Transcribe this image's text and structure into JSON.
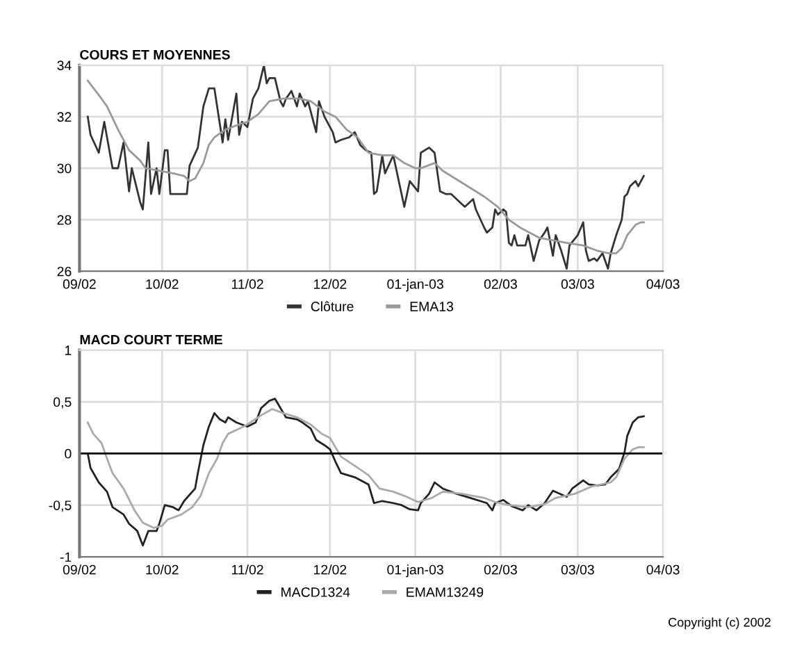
{
  "chart_data": [
    {
      "type": "line",
      "title": "COURS ET MOYENNES",
      "xlim": [
        "2002-09-01",
        "2003-04-01"
      ],
      "ylim": [
        26,
        34
      ],
      "yticks": [
        26,
        28,
        30,
        32,
        34
      ],
      "xticks": [
        {
          "value": "2002-09-01",
          "label": "09/02"
        },
        {
          "value": "2002-10-01",
          "label": "10/02"
        },
        {
          "value": "2002-11-01",
          "label": "11/02"
        },
        {
          "value": "2002-12-01",
          "label": "12/02"
        },
        {
          "value": "2003-01-01",
          "label": "01-jan-03"
        },
        {
          "value": "2003-02-01",
          "label": "02/03"
        },
        {
          "value": "2003-03-01",
          "label": "03/03"
        },
        {
          "value": "2003-04-01",
          "label": "04/03"
        }
      ],
      "grid": true,
      "legend": "bottom",
      "marker": "none",
      "line_style": "solid",
      "series": [
        {
          "name": "Clôture",
          "color": "#333333",
          "x": [
            "2002-09-04",
            "2002-09-05",
            "2002-09-08",
            "2002-09-10",
            "2002-09-13",
            "2002-09-15",
            "2002-09-17",
            "2002-09-19",
            "2002-09-20",
            "2002-09-23",
            "2002-09-24",
            "2002-09-26",
            "2002-09-27",
            "2002-09-29",
            "2002-09-30",
            "2002-10-02",
            "2002-10-03",
            "2002-10-04",
            "2002-10-07",
            "2002-10-10",
            "2002-10-11",
            "2002-10-14",
            "2002-10-16",
            "2002-10-18",
            "2002-10-20",
            "2002-10-21",
            "2002-10-23",
            "2002-10-24",
            "2002-10-25",
            "2002-10-26",
            "2002-10-28",
            "2002-10-29",
            "2002-10-30",
            "2002-11-01",
            "2002-11-03",
            "2002-11-05",
            "2002-11-07",
            "2002-11-08",
            "2002-11-09",
            "2002-11-11",
            "2002-11-13",
            "2002-11-14",
            "2002-11-15",
            "2002-11-17",
            "2002-11-19",
            "2002-11-20",
            "2002-11-22",
            "2002-11-23",
            "2002-11-26",
            "2002-11-27",
            "2002-11-29",
            "2002-12-02",
            "2002-12-03",
            "2002-12-05",
            "2002-12-08",
            "2002-12-10",
            "2002-12-12",
            "2002-12-14",
            "2002-12-16",
            "2002-12-17",
            "2002-12-18",
            "2002-12-20",
            "2002-12-21",
            "2002-12-24",
            "2002-12-28",
            "2002-12-30",
            "2003-01-02",
            "2003-01-03",
            "2003-01-06",
            "2003-01-08",
            "2003-01-10",
            "2003-01-12",
            "2003-01-14",
            "2003-01-17",
            "2003-01-19",
            "2003-01-22",
            "2003-01-23",
            "2003-01-26",
            "2003-01-27",
            "2003-01-29",
            "2003-01-30",
            "2003-01-31",
            "2003-02-02",
            "2003-02-03",
            "2003-02-04",
            "2003-02-05",
            "2003-02-06",
            "2003-02-07",
            "2003-02-10",
            "2003-02-11",
            "2003-02-13",
            "2003-02-15",
            "2003-02-17",
            "2003-02-18",
            "2003-02-20",
            "2003-02-21",
            "2003-02-23",
            "2003-02-25",
            "2003-02-26",
            "2003-03-01",
            "2003-03-03",
            "2003-03-04",
            "2003-03-05",
            "2003-03-07",
            "2003-03-08",
            "2003-03-10",
            "2003-03-12",
            "2003-03-13",
            "2003-03-15",
            "2003-03-17",
            "2003-03-18",
            "2003-03-19",
            "2003-03-20",
            "2003-03-22",
            "2003-03-23",
            "2003-03-25"
          ],
          "values": [
            32.0,
            31.3,
            30.6,
            31.8,
            30.0,
            30.0,
            31.0,
            29.1,
            30.0,
            28.7,
            28.4,
            31.0,
            29.0,
            30.0,
            29.0,
            30.7,
            30.7,
            29.0,
            29.0,
            29.0,
            30.1,
            30.8,
            32.4,
            33.1,
            33.1,
            32.4,
            31.0,
            31.9,
            31.1,
            31.7,
            32.9,
            31.3,
            31.8,
            31.6,
            32.7,
            33.1,
            34.0,
            33.3,
            33.5,
            33.5,
            32.6,
            32.4,
            32.7,
            33.0,
            32.4,
            32.9,
            32.4,
            32.6,
            31.4,
            32.6,
            32.0,
            31.4,
            31.0,
            31.1,
            31.2,
            31.4,
            30.9,
            30.7,
            30.6,
            29.0,
            29.1,
            30.5,
            29.8,
            30.5,
            28.5,
            29.5,
            29.1,
            30.6,
            30.8,
            30.6,
            29.1,
            29.0,
            29.0,
            28.7,
            28.5,
            28.8,
            28.4,
            27.7,
            27.5,
            27.7,
            28.4,
            28.2,
            28.4,
            28.3,
            27.1,
            27.0,
            27.4,
            27.0,
            27.0,
            27.4,
            26.4,
            27.2,
            27.5,
            27.7,
            26.6,
            27.4,
            26.8,
            26.1,
            27.0,
            27.4,
            27.9,
            26.8,
            26.4,
            26.5,
            26.4,
            26.7,
            26.1,
            26.7,
            27.4,
            28.0,
            28.9,
            29.0,
            29.3,
            29.5,
            29.3,
            29.7
          ]
        },
        {
          "name": "EMA13",
          "color": "#999999",
          "x": [
            "2002-09-04",
            "2002-09-09",
            "2002-09-11",
            "2002-09-15",
            "2002-09-19",
            "2002-09-23",
            "2002-09-25",
            "2002-09-30",
            "2002-10-05",
            "2002-10-09",
            "2002-10-11",
            "2002-10-13",
            "2002-10-16",
            "2002-10-18",
            "2002-10-20",
            "2002-10-24",
            "2002-10-29",
            "2002-11-01",
            "2002-11-05",
            "2002-11-09",
            "2002-11-14",
            "2002-11-20",
            "2002-11-24",
            "2002-11-29",
            "2002-12-03",
            "2002-12-07",
            "2002-12-11",
            "2002-12-15",
            "2002-12-20",
            "2002-12-24",
            "2002-12-28",
            "2003-01-01",
            "2003-01-03",
            "2003-01-08",
            "2003-01-11",
            "2003-01-17",
            "2003-01-26",
            "2003-01-31",
            "2003-02-04",
            "2003-02-08",
            "2003-02-15",
            "2003-02-20",
            "2003-02-25",
            "2003-03-03",
            "2003-03-08",
            "2003-03-12",
            "2003-03-15",
            "2003-03-17",
            "2003-03-19",
            "2003-03-22",
            "2003-03-24",
            "2003-03-25"
          ],
          "values": [
            33.4,
            32.7,
            32.4,
            31.5,
            30.7,
            30.3,
            30.0,
            29.9,
            29.8,
            29.7,
            29.5,
            29.6,
            30.2,
            30.9,
            31.2,
            31.5,
            31.7,
            31.8,
            32.1,
            32.6,
            32.7,
            32.7,
            32.6,
            32.2,
            32.0,
            31.5,
            31.2,
            30.6,
            30.5,
            30.5,
            30.2,
            30.0,
            30.0,
            30.2,
            29.9,
            29.5,
            28.9,
            28.5,
            28.0,
            27.7,
            27.3,
            27.2,
            27.1,
            27.0,
            26.8,
            26.7,
            26.7,
            26.9,
            27.4,
            27.8,
            27.9,
            27.9
          ]
        }
      ]
    },
    {
      "type": "line",
      "title": "MACD COURT TERME",
      "xlim": [
        "2002-09-01",
        "2003-04-01"
      ],
      "ylim": [
        -1,
        1
      ],
      "yticks": [
        {
          "value": -1,
          "label": "-1"
        },
        {
          "value": -0.5,
          "label": "-0,5"
        },
        0,
        {
          "value": 0.5,
          "label": "0,5"
        },
        1
      ],
      "xticks": [
        {
          "value": "2002-09-01",
          "label": "09/02"
        },
        {
          "value": "2002-10-01",
          "label": "10/02"
        },
        {
          "value": "2002-11-01",
          "label": "11/02"
        },
        {
          "value": "2002-12-01",
          "label": "12/02"
        },
        {
          "value": "2003-01-01",
          "label": "01-jan-03"
        },
        {
          "value": "2003-02-01",
          "label": "02/03"
        },
        {
          "value": "2003-03-01",
          "label": "03/03"
        },
        {
          "value": "2003-04-01",
          "label": "04/03"
        }
      ],
      "grid": true,
      "legend": "bottom",
      "marker": "none",
      "line_style": "solid",
      "ref_lines": [
        {
          "axis": "y",
          "value": 0,
          "color": "#000000"
        }
      ],
      "annotations": [
        "Copyright (c) 2002"
      ],
      "series": [
        {
          "name": "MACD1324",
          "color": "#222222",
          "x": [
            "2002-09-04",
            "2002-09-05",
            "2002-09-08",
            "2002-09-11",
            "2002-09-13",
            "2002-09-17",
            "2002-09-19",
            "2002-09-22",
            "2002-09-24",
            "2002-09-26",
            "2002-09-29",
            "2002-09-30",
            "2002-10-02",
            "2002-10-05",
            "2002-10-07",
            "2002-10-09",
            "2002-10-13",
            "2002-10-14",
            "2002-10-16",
            "2002-10-18",
            "2002-10-20",
            "2002-10-22",
            "2002-10-24",
            "2002-10-25",
            "2002-10-28",
            "2002-10-30",
            "2002-11-01",
            "2002-11-04",
            "2002-11-06",
            "2002-11-09",
            "2002-11-11",
            "2002-11-13",
            "2002-11-15",
            "2002-11-19",
            "2002-11-21",
            "2002-11-24",
            "2002-11-26",
            "2002-11-29",
            "2002-12-01",
            "2002-12-03",
            "2002-12-05",
            "2002-12-10",
            "2002-12-15",
            "2002-12-17",
            "2002-12-20",
            "2002-12-24",
            "2002-12-27",
            "2002-12-30",
            "2003-01-02",
            "2003-01-03",
            "2003-01-06",
            "2003-01-08",
            "2003-01-11",
            "2003-01-16",
            "2003-01-21",
            "2003-01-27",
            "2003-01-29",
            "2003-01-30",
            "2003-02-02",
            "2003-02-05",
            "2003-02-09",
            "2003-02-11",
            "2003-02-14",
            "2003-02-17",
            "2003-02-20",
            "2003-02-25",
            "2003-02-27",
            "2003-03-03",
            "2003-03-05",
            "2003-03-08",
            "2003-03-11",
            "2003-03-13",
            "2003-03-16",
            "2003-03-18",
            "2003-03-19",
            "2003-03-21",
            "2003-03-23",
            "2003-03-25"
          ],
          "values": [
            0.0,
            -0.14,
            -0.28,
            -0.37,
            -0.52,
            -0.59,
            -0.68,
            -0.75,
            -0.89,
            -0.75,
            -0.75,
            -0.68,
            -0.5,
            -0.52,
            -0.55,
            -0.46,
            -0.34,
            -0.19,
            0.08,
            0.26,
            0.39,
            0.33,
            0.3,
            0.35,
            0.3,
            0.28,
            0.26,
            0.3,
            0.44,
            0.51,
            0.53,
            0.44,
            0.35,
            0.33,
            0.3,
            0.24,
            0.13,
            0.08,
            0.04,
            -0.08,
            -0.19,
            -0.23,
            -0.3,
            -0.48,
            -0.46,
            -0.48,
            -0.5,
            -0.54,
            -0.55,
            -0.48,
            -0.39,
            -0.28,
            -0.34,
            -0.39,
            -0.43,
            -0.48,
            -0.55,
            -0.48,
            -0.45,
            -0.51,
            -0.55,
            -0.5,
            -0.55,
            -0.48,
            -0.36,
            -0.42,
            -0.34,
            -0.26,
            -0.3,
            -0.31,
            -0.3,
            -0.23,
            -0.15,
            0.01,
            0.17,
            0.3,
            0.35,
            0.36
          ]
        },
        {
          "name": "EMAM13249",
          "color": "#aaaaaa",
          "x": [
            "2002-09-04",
            "2002-09-06",
            "2002-09-09",
            "2002-09-11",
            "2002-09-13",
            "2002-09-17",
            "2002-09-21",
            "2002-09-24",
            "2002-09-28",
            "2002-10-01",
            "2002-10-03",
            "2002-10-08",
            "2002-10-12",
            "2002-10-15",
            "2002-10-18",
            "2002-10-21",
            "2002-10-23",
            "2002-10-25",
            "2002-10-29",
            "2002-11-01",
            "2002-11-06",
            "2002-11-10",
            "2002-11-14",
            "2002-11-19",
            "2002-11-24",
            "2002-11-28",
            "2002-12-01",
            "2002-12-05",
            "2002-12-10",
            "2002-12-15",
            "2002-12-19",
            "2002-12-24",
            "2002-12-28",
            "2003-01-02",
            "2003-01-07",
            "2003-01-11",
            "2003-01-18",
            "2003-01-26",
            "2003-01-30",
            "2003-02-04",
            "2003-02-11",
            "2003-02-17",
            "2003-02-21",
            "2003-02-28",
            "2003-03-06",
            "2003-03-13",
            "2003-03-15",
            "2003-03-18",
            "2003-03-21",
            "2003-03-23",
            "2003-03-25"
          ],
          "values": [
            0.3,
            0.19,
            0.1,
            -0.05,
            -0.19,
            -0.34,
            -0.55,
            -0.67,
            -0.72,
            -0.7,
            -0.64,
            -0.59,
            -0.52,
            -0.41,
            -0.19,
            -0.05,
            0.1,
            0.19,
            0.24,
            0.28,
            0.37,
            0.43,
            0.39,
            0.35,
            0.28,
            0.19,
            0.15,
            -0.03,
            -0.12,
            -0.21,
            -0.34,
            -0.37,
            -0.41,
            -0.47,
            -0.43,
            -0.37,
            -0.39,
            -0.43,
            -0.47,
            -0.5,
            -0.52,
            -0.49,
            -0.43,
            -0.39,
            -0.32,
            -0.28,
            -0.23,
            -0.05,
            0.04,
            0.06,
            0.06
          ]
        }
      ]
    }
  ]
}
